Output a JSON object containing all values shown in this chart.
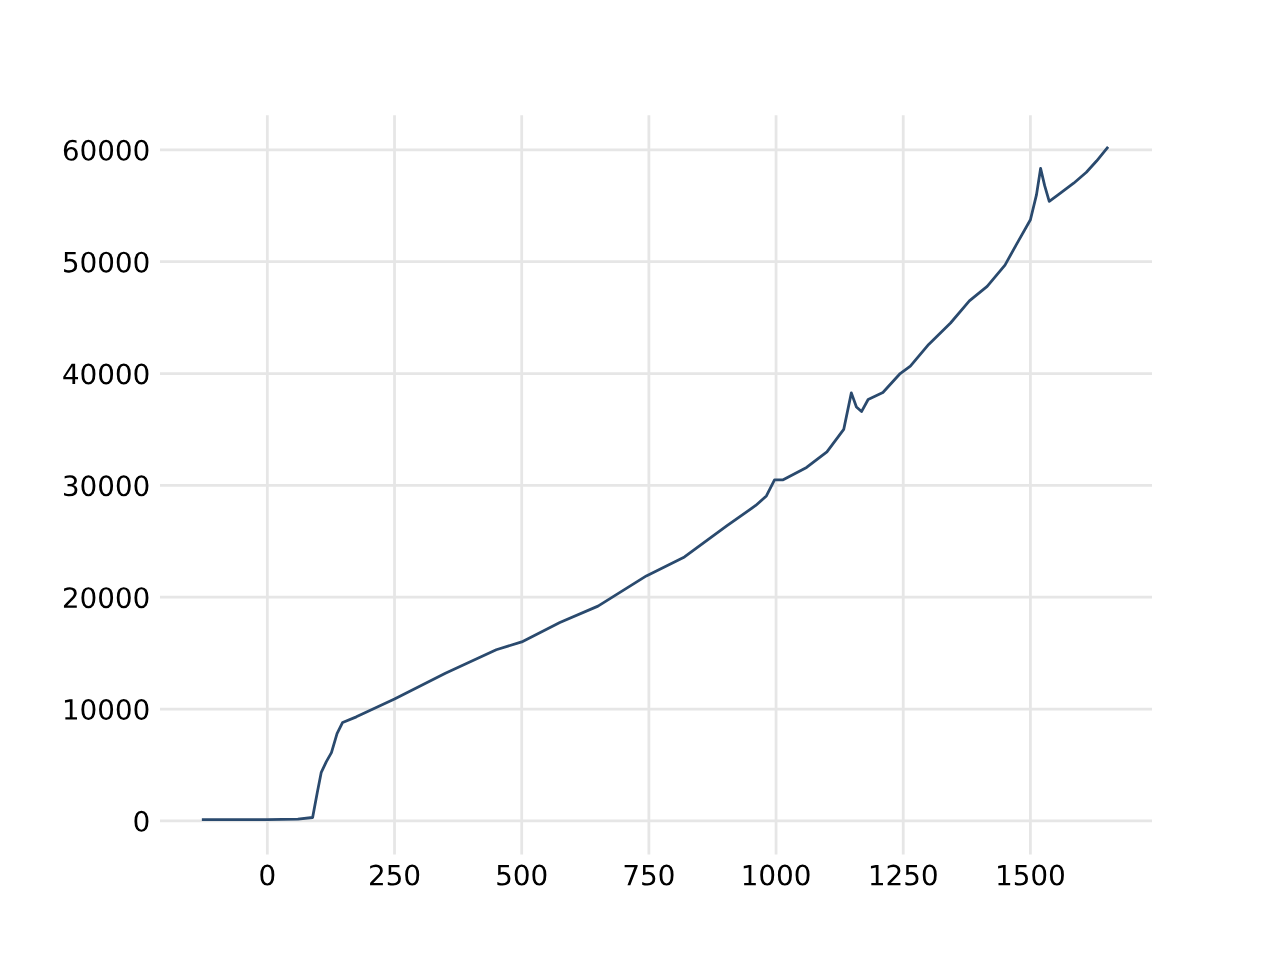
{
  "chart_data": {
    "type": "line",
    "x": [
      -126,
      0,
      60,
      89,
      98,
      106,
      116,
      126,
      137,
      148,
      175,
      250,
      350,
      450,
      500,
      575,
      650,
      745,
      820,
      903,
      960,
      981,
      997,
      1014,
      1060,
      1100,
      1133,
      1148,
      1158,
      1168,
      1181,
      1210,
      1244,
      1264,
      1300,
      1343,
      1380,
      1415,
      1450,
      1474,
      1500,
      1512,
      1520,
      1528,
      1537,
      1555,
      1585,
      1610,
      1630,
      1651
    ],
    "series": [
      {
        "color": "#2a4a6e",
        "values": [
          100,
          100,
          150,
          300,
          2500,
          4340,
          5300,
          6100,
          7800,
          8800,
          9300,
          10900,
          13200,
          15300,
          16000,
          17730,
          19200,
          21900,
          23600,
          26370,
          28200,
          29050,
          30500,
          30500,
          31600,
          33000,
          35000,
          38270,
          37000,
          36600,
          37680,
          38300,
          40000,
          40660,
          42600,
          44520,
          46500,
          47800,
          49700,
          51660,
          53750,
          56000,
          58340,
          56800,
          55400,
          56000,
          57020,
          58000,
          59000,
          60180
        ]
      }
    ],
    "xlim": [
      -211,
      1739
    ],
    "ylim": [
      -3000,
      63100
    ],
    "xticks": [
      0,
      250,
      500,
      750,
      1000,
      1250,
      1500
    ],
    "yticks": [
      0,
      10000,
      20000,
      30000,
      40000,
      50000,
      60000
    ],
    "grid": true,
    "legend": false
  }
}
